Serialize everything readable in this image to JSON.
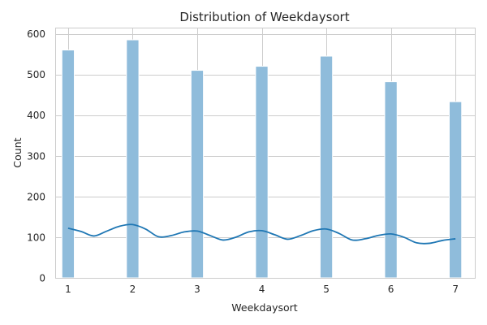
{
  "chart_data": {
    "type": "bar",
    "title": "Distribution of Weekdaysort",
    "xlabel": "Weekdaysort",
    "ylabel": "Count",
    "categories": [
      "1",
      "2",
      "3",
      "4",
      "5",
      "6",
      "7"
    ],
    "x": [
      1,
      2,
      3,
      4,
      5,
      6,
      7
    ],
    "values": [
      560,
      585,
      510,
      520,
      545,
      482,
      433
    ],
    "xlim": [
      0.8,
      7.3
    ],
    "ylim": [
      0,
      615
    ],
    "xticks": [
      1,
      2,
      3,
      4,
      5,
      6,
      7
    ],
    "yticks": [
      0,
      100,
      200,
      300,
      400,
      500,
      600
    ],
    "grid": true,
    "legend": "none",
    "bar_color": "#8fbcdb",
    "kde_color": "#1f77b4",
    "kde_curve": {
      "x": [
        1.0,
        1.2,
        1.4,
        1.6,
        1.8,
        2.0,
        2.2,
        2.4,
        2.6,
        2.8,
        3.0,
        3.2,
        3.4,
        3.6,
        3.8,
        4.0,
        4.2,
        4.4,
        4.6,
        4.8,
        5.0,
        5.2,
        5.4,
        5.6,
        5.8,
        6.0,
        6.2,
        6.4,
        6.6,
        6.8,
        7.0
      ],
      "y": [
        122,
        114,
        103,
        115,
        127,
        131,
        120,
        101,
        104,
        113,
        115,
        104,
        93,
        100,
        113,
        116,
        106,
        95,
        104,
        116,
        120,
        109,
        93,
        96,
        104,
        108,
        100,
        86,
        85,
        92,
        96
      ]
    }
  }
}
